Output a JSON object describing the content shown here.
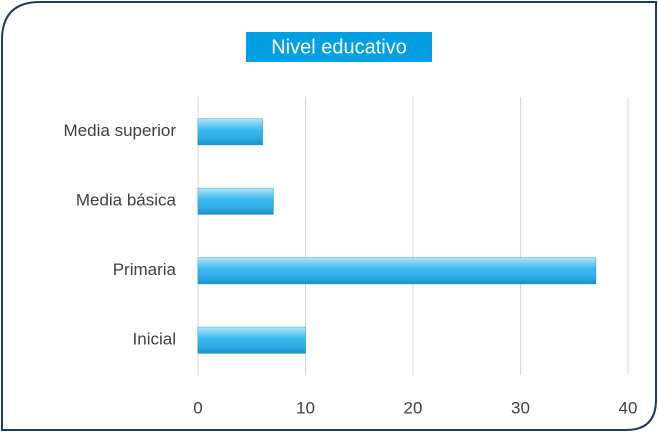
{
  "chart_data": {
    "type": "bar",
    "orientation": "horizontal",
    "title": "Nivel educativo",
    "categories": [
      "Media superior",
      "Media básica",
      "Primaria",
      "Inicial"
    ],
    "values": [
      6,
      7,
      37,
      10
    ],
    "color": "#1fb0ec",
    "xlim": [
      0,
      40
    ],
    "xticks": [
      0,
      10,
      20,
      30,
      40
    ],
    "grid": true
  }
}
